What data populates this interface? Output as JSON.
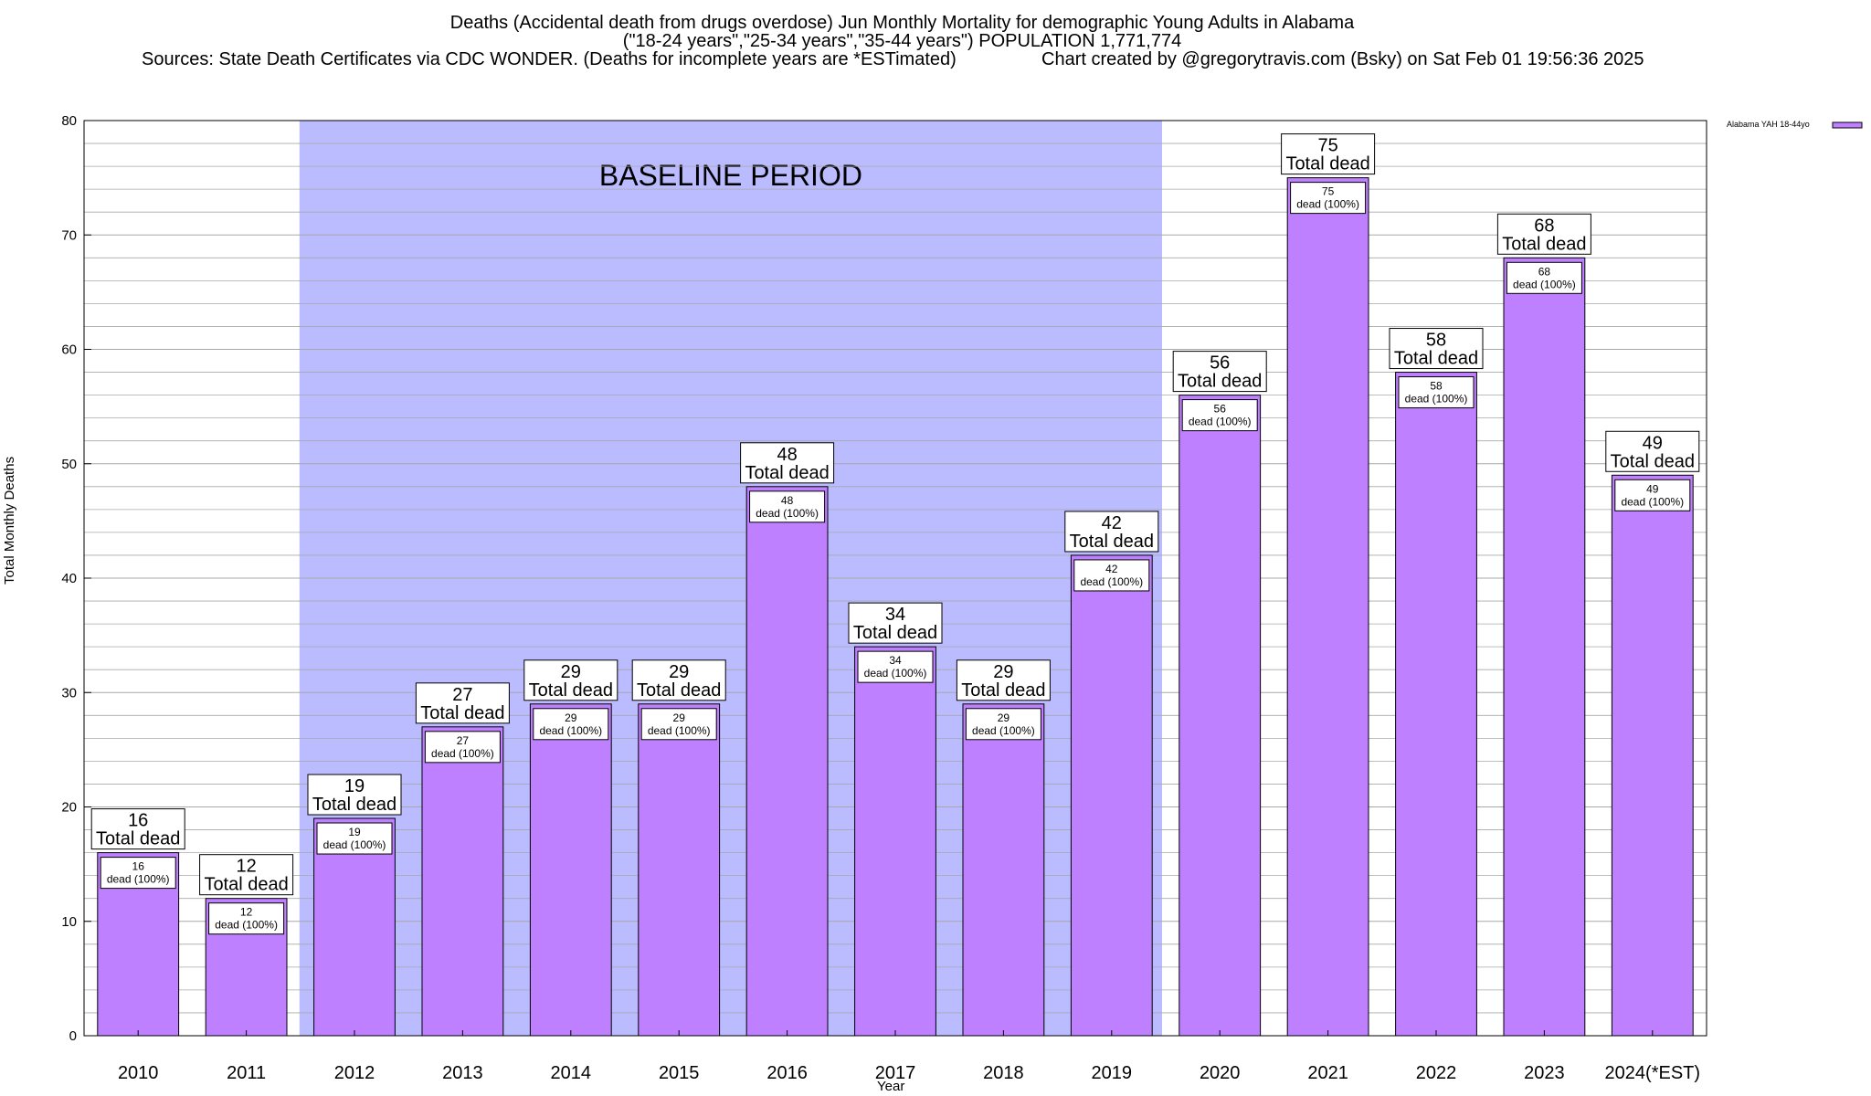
{
  "header": {
    "title_line1": "Deaths (Accidental death from drugs overdose) Jun Monthly Mortality for demographic Young Adults in Alabama",
    "title_line2": "(\"18-24 years\",\"25-34 years\",\"35-44 years\") POPULATION 1,771,774",
    "sources": "Sources: State Death Certificates via CDC WONDER. (Deaths for incomplete years are *ESTimated)",
    "credit": "Chart created by @gregorytravis.com (Bsky) on Sat Feb 01 19:56:36 2025"
  },
  "colors": {
    "bar_fill": "#bf80ff",
    "baseline_shade": "#bbbbff",
    "grid": "#a8a8a8",
    "axis": "#000000"
  },
  "chart_data": {
    "type": "bar",
    "xlabel": "Year",
    "ylabel": "Total Monthly Deaths",
    "ylim": [
      0,
      80
    ],
    "yticks": [
      0,
      10,
      20,
      30,
      40,
      50,
      60,
      70,
      80
    ],
    "grid": true,
    "legend_position": "top-right",
    "categories": [
      "2010",
      "2011",
      "2012",
      "2013",
      "2014",
      "2015",
      "2016",
      "2017",
      "2018",
      "2019",
      "2020",
      "2021",
      "2022",
      "2023",
      "2024(*EST)"
    ],
    "series": [
      {
        "name": "Alabama YAH 18-44yo",
        "values": [
          16,
          12,
          19,
          27,
          29,
          29,
          48,
          34,
          29,
          42,
          56,
          75,
          58,
          68,
          49
        ]
      }
    ],
    "top_label_suffix": "Total dead",
    "inner_label_suffix": "dead (100%)",
    "baseline_period": {
      "label": "BASELINE PERIOD",
      "from": "2012",
      "to": "2019"
    }
  }
}
